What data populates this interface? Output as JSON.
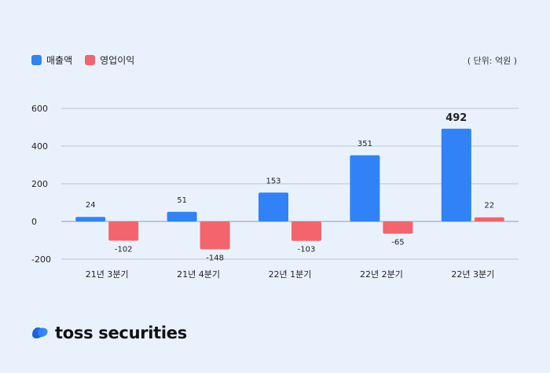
{
  "legend": {
    "sales_label": "매출액",
    "profit_label": "영업이익"
  },
  "unit_label": "( 단위: 억원 )",
  "brand": {
    "name": "toss securities",
    "logo_icon": "toss-logo-icon"
  },
  "colors": {
    "sales": "#3182f6",
    "profit": "#f4646c",
    "grid": "#b9c3cf",
    "background": "#e9f2fc"
  },
  "chart_data": {
    "type": "bar",
    "categories": [
      "21년 3분기",
      "21년 4분기",
      "22년 1분기",
      "22년 2분기",
      "22년 3분기"
    ],
    "series": [
      {
        "name": "매출액",
        "values": [
          24,
          51,
          153,
          351,
          492
        ]
      },
      {
        "name": "영업이익",
        "values": [
          -102,
          -148,
          -103,
          -65,
          22
        ]
      }
    ],
    "data_labels": [
      [
        "24",
        "51",
        "153",
        "351",
        "492"
      ],
      [
        "-102",
        "-148",
        "-103",
        "-65",
        "22"
      ]
    ],
    "yticks": [
      600,
      400,
      200,
      0,
      -200
    ],
    "ytick_labels": [
      "600",
      "400",
      "200",
      "0",
      "-200"
    ],
    "ylim": [
      -200,
      600
    ],
    "grid": true,
    "legend_position": "top-left"
  }
}
